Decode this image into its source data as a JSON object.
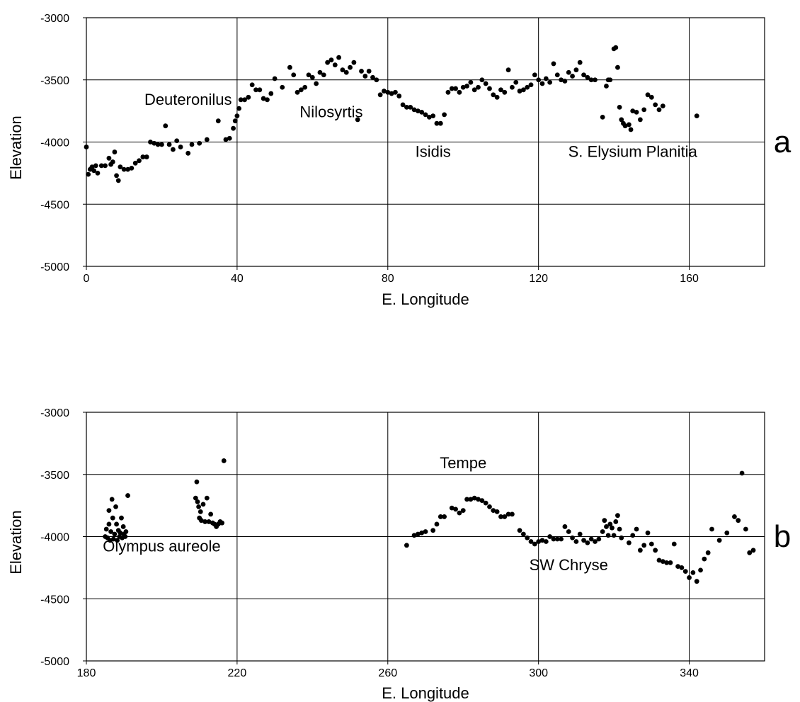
{
  "chart_data": [
    {
      "type": "scatter",
      "panel_label": "a",
      "xlabel": "E. Longitude",
      "ylabel": "Elevation",
      "xlim": [
        0,
        180
      ],
      "ylim": [
        -5000,
        -3000
      ],
      "xticks": [
        0,
        40,
        80,
        120,
        160
      ],
      "yticks": [
        -3000,
        -3500,
        -4000,
        -4500,
        -5000
      ],
      "grid": true,
      "annotations": [
        {
          "text": "Deuteronilus",
          "x": 27,
          "y": -3700
        },
        {
          "text": "Nilosyrtis",
          "x": 65,
          "y": -3800
        },
        {
          "text": "Isidis",
          "x": 92,
          "y": -4120
        },
        {
          "text": "S. Elysium Planitia",
          "x": 145,
          "y": -4120
        }
      ],
      "points": [
        [
          0,
          -4040
        ],
        [
          0.5,
          -4260
        ],
        [
          1,
          -4220
        ],
        [
          1.5,
          -4200
        ],
        [
          2,
          -4230
        ],
        [
          2.5,
          -4190
        ],
        [
          3,
          -4250
        ],
        [
          4,
          -4190
        ],
        [
          5,
          -4190
        ],
        [
          6,
          -4130
        ],
        [
          6.5,
          -4180
        ],
        [
          7,
          -4160
        ],
        [
          7.5,
          -4080
        ],
        [
          8,
          -4270
        ],
        [
          8.5,
          -4310
        ],
        [
          9,
          -4200
        ],
        [
          10,
          -4220
        ],
        [
          11,
          -4220
        ],
        [
          12,
          -4210
        ],
        [
          13,
          -4170
        ],
        [
          14,
          -4150
        ],
        [
          15,
          -4120
        ],
        [
          16,
          -4120
        ],
        [
          17,
          -4000
        ],
        [
          18,
          -4010
        ],
        [
          19,
          -4020
        ],
        [
          20,
          -4020
        ],
        [
          21,
          -3870
        ],
        [
          22,
          -4020
        ],
        [
          23,
          -4060
        ],
        [
          24,
          -3990
        ],
        [
          25,
          -4040
        ],
        [
          27,
          -4090
        ],
        [
          28,
          -4020
        ],
        [
          30,
          -4010
        ],
        [
          32,
          -3980
        ],
        [
          35,
          -3830
        ],
        [
          37,
          -3980
        ],
        [
          38,
          -3970
        ],
        [
          39,
          -3890
        ],
        [
          39.5,
          -3830
        ],
        [
          40,
          -3790
        ],
        [
          40.5,
          -3730
        ],
        [
          41,
          -3660
        ],
        [
          42,
          -3660
        ],
        [
          43,
          -3640
        ],
        [
          44,
          -3540
        ],
        [
          45,
          -3580
        ],
        [
          46,
          -3580
        ],
        [
          47,
          -3650
        ],
        [
          48,
          -3660
        ],
        [
          49,
          -3610
        ],
        [
          50,
          -3490
        ],
        [
          52,
          -3560
        ],
        [
          54,
          -3400
        ],
        [
          55,
          -3460
        ],
        [
          56,
          -3600
        ],
        [
          57,
          -3580
        ],
        [
          58,
          -3560
        ],
        [
          59,
          -3460
        ],
        [
          60,
          -3480
        ],
        [
          61,
          -3530
        ],
        [
          62,
          -3440
        ],
        [
          63,
          -3460
        ],
        [
          64,
          -3360
        ],
        [
          65,
          -3340
        ],
        [
          66,
          -3380
        ],
        [
          67,
          -3320
        ],
        [
          68,
          -3420
        ],
        [
          69,
          -3440
        ],
        [
          70,
          -3400
        ],
        [
          71,
          -3360
        ],
        [
          72,
          -3820
        ],
        [
          73,
          -3430
        ],
        [
          74,
          -3470
        ],
        [
          75,
          -3430
        ],
        [
          76,
          -3480
        ],
        [
          77,
          -3500
        ],
        [
          78,
          -3620
        ],
        [
          79,
          -3590
        ],
        [
          80,
          -3600
        ],
        [
          81,
          -3610
        ],
        [
          82,
          -3600
        ],
        [
          83,
          -3630
        ],
        [
          84,
          -3700
        ],
        [
          85,
          -3720
        ],
        [
          86,
          -3720
        ],
        [
          87,
          -3740
        ],
        [
          88,
          -3750
        ],
        [
          89,
          -3760
        ],
        [
          90,
          -3780
        ],
        [
          91,
          -3800
        ],
        [
          92,
          -3790
        ],
        [
          93,
          -3850
        ],
        [
          94,
          -3850
        ],
        [
          95,
          -3780
        ],
        [
          96,
          -3600
        ],
        [
          97,
          -3570
        ],
        [
          98,
          -3570
        ],
        [
          99,
          -3600
        ],
        [
          100,
          -3560
        ],
        [
          101,
          -3550
        ],
        [
          102,
          -3520
        ],
        [
          103,
          -3580
        ],
        [
          104,
          -3560
        ],
        [
          105,
          -3500
        ],
        [
          106,
          -3530
        ],
        [
          107,
          -3570
        ],
        [
          108,
          -3620
        ],
        [
          109,
          -3640
        ],
        [
          110,
          -3580
        ],
        [
          111,
          -3600
        ],
        [
          112,
          -3420
        ],
        [
          113,
          -3560
        ],
        [
          114,
          -3520
        ],
        [
          115,
          -3590
        ],
        [
          116,
          -3580
        ],
        [
          117,
          -3560
        ],
        [
          118,
          -3540
        ],
        [
          119,
          -3460
        ],
        [
          120,
          -3500
        ],
        [
          121,
          -3530
        ],
        [
          122,
          -3490
        ],
        [
          123,
          -3520
        ],
        [
          124,
          -3370
        ],
        [
          125,
          -3460
        ],
        [
          126,
          -3500
        ],
        [
          127,
          -3510
        ],
        [
          128,
          -3440
        ],
        [
          129,
          -3470
        ],
        [
          130,
          -3420
        ],
        [
          131,
          -3360
        ],
        [
          132,
          -3460
        ],
        [
          133,
          -3480
        ],
        [
          134,
          -3500
        ],
        [
          135,
          -3500
        ],
        [
          137,
          -3800
        ],
        [
          138,
          -3550
        ],
        [
          138.5,
          -3500
        ],
        [
          139,
          -3500
        ],
        [
          140,
          -3250
        ],
        [
          140.5,
          -3240
        ],
        [
          141,
          -3400
        ],
        [
          141.5,
          -3720
        ],
        [
          142,
          -3820
        ],
        [
          142.5,
          -3850
        ],
        [
          143,
          -3870
        ],
        [
          144,
          -3860
        ],
        [
          144.5,
          -3900
        ],
        [
          145,
          -3750
        ],
        [
          146,
          -3760
        ],
        [
          147,
          -3820
        ],
        [
          148,
          -3740
        ],
        [
          149,
          -3620
        ],
        [
          150,
          -3640
        ],
        [
          151,
          -3700
        ],
        [
          152,
          -3740
        ],
        [
          153,
          -3710
        ],
        [
          162,
          -3790
        ]
      ]
    },
    {
      "type": "scatter",
      "panel_label": "b",
      "xlabel": "E. Longitude",
      "ylabel": "Elevation",
      "xlim": [
        180,
        360
      ],
      "ylim": [
        -5000,
        -3000
      ],
      "xticks": [
        180,
        220,
        260,
        300,
        340
      ],
      "yticks": [
        -3000,
        -3500,
        -4000,
        -4500,
        -5000
      ],
      "grid": true,
      "annotations": [
        {
          "text": "Olympus aureole",
          "x": 200,
          "y": -4120
        },
        {
          "text": "Tempe",
          "x": 280,
          "y": -3450
        },
        {
          "text": "SW Chryse",
          "x": 308,
          "y": -4270
        }
      ],
      "points": [
        [
          185,
          -4000
        ],
        [
          185.3,
          -3940
        ],
        [
          185.6,
          -4010
        ],
        [
          186,
          -3900
        ],
        [
          186,
          -3790
        ],
        [
          186.3,
          -4030
        ],
        [
          186.5,
          -3960
        ],
        [
          186.8,
          -3700
        ],
        [
          187,
          -3850
        ],
        [
          187.2,
          -4020
        ],
        [
          187.5,
          -3980
        ],
        [
          187.8,
          -3760
        ],
        [
          188,
          -3900
        ],
        [
          188.2,
          -4030
        ],
        [
          188.5,
          -3950
        ],
        [
          188.8,
          -4000
        ],
        [
          189,
          -3970
        ],
        [
          189.3,
          -3850
        ],
        [
          189.5,
          -4010
        ],
        [
          189.8,
          -3920
        ],
        [
          190,
          -3980
        ],
        [
          190.3,
          -4000
        ],
        [
          190.5,
          -3960
        ],
        [
          191,
          -3670
        ],
        [
          209,
          -3690
        ],
        [
          209.3,
          -3560
        ],
        [
          209.5,
          -3720
        ],
        [
          209.8,
          -3760
        ],
        [
          210,
          -3850
        ],
        [
          210.3,
          -3800
        ],
        [
          210.5,
          -3870
        ],
        [
          211,
          -3740
        ],
        [
          211.5,
          -3880
        ],
        [
          212,
          -3690
        ],
        [
          212.5,
          -3880
        ],
        [
          213,
          -3820
        ],
        [
          213.5,
          -3890
        ],
        [
          214,
          -3900
        ],
        [
          214.5,
          -3920
        ],
        [
          215,
          -3900
        ],
        [
          215.5,
          -3880
        ],
        [
          216,
          -3890
        ],
        [
          216.5,
          -3390
        ],
        [
          265,
          -4070
        ],
        [
          267,
          -3990
        ],
        [
          268,
          -3980
        ],
        [
          269,
          -3970
        ],
        [
          270,
          -3960
        ],
        [
          272,
          -3950
        ],
        [
          273,
          -3900
        ],
        [
          274,
          -3840
        ],
        [
          275,
          -3840
        ],
        [
          277,
          -3770
        ],
        [
          278,
          -3780
        ],
        [
          279,
          -3810
        ],
        [
          280,
          -3790
        ],
        [
          281,
          -3700
        ],
        [
          282,
          -3700
        ],
        [
          283,
          -3690
        ],
        [
          284,
          -3700
        ],
        [
          285,
          -3710
        ],
        [
          286,
          -3730
        ],
        [
          287,
          -3760
        ],
        [
          288,
          -3790
        ],
        [
          289,
          -3800
        ],
        [
          290,
          -3840
        ],
        [
          291,
          -3840
        ],
        [
          292,
          -3820
        ],
        [
          293,
          -3820
        ],
        [
          295,
          -3950
        ],
        [
          296,
          -3980
        ],
        [
          297,
          -4010
        ],
        [
          298,
          -4040
        ],
        [
          299,
          -4060
        ],
        [
          300,
          -4040
        ],
        [
          301,
          -4030
        ],
        [
          302,
          -4040
        ],
        [
          303,
          -4000
        ],
        [
          304,
          -4020
        ],
        [
          305,
          -4020
        ],
        [
          306,
          -4020
        ],
        [
          307,
          -3920
        ],
        [
          308,
          -3960
        ],
        [
          309,
          -4010
        ],
        [
          310,
          -4040
        ],
        [
          311,
          -3980
        ],
        [
          312,
          -4030
        ],
        [
          313,
          -4050
        ],
        [
          314,
          -4020
        ],
        [
          315,
          -4040
        ],
        [
          316,
          -4020
        ],
        [
          317,
          -3960
        ],
        [
          317.5,
          -3870
        ],
        [
          318,
          -3920
        ],
        [
          318.5,
          -3990
        ],
        [
          319,
          -3900
        ],
        [
          319.5,
          -3930
        ],
        [
          320,
          -3990
        ],
        [
          320.5,
          -3880
        ],
        [
          321,
          -3830
        ],
        [
          321.5,
          -3940
        ],
        [
          322,
          -4010
        ],
        [
          324,
          -4050
        ],
        [
          325,
          -3990
        ],
        [
          326,
          -3940
        ],
        [
          327,
          -4110
        ],
        [
          328,
          -4070
        ],
        [
          329,
          -3970
        ],
        [
          330,
          -4060
        ],
        [
          331,
          -4110
        ],
        [
          332,
          -4190
        ],
        [
          333,
          -4200
        ],
        [
          334,
          -4210
        ],
        [
          335,
          -4210
        ],
        [
          336,
          -4060
        ],
        [
          337,
          -4240
        ],
        [
          338,
          -4250
        ],
        [
          339,
          -4280
        ],
        [
          340,
          -4330
        ],
        [
          341,
          -4290
        ],
        [
          342,
          -4360
        ],
        [
          343,
          -4270
        ],
        [
          344,
          -4180
        ],
        [
          345,
          -4130
        ],
        [
          346,
          -3940
        ],
        [
          348,
          -4030
        ],
        [
          350,
          -3970
        ],
        [
          352,
          -3840
        ],
        [
          353,
          -3870
        ],
        [
          354,
          -3490
        ],
        [
          355,
          -3940
        ],
        [
          356,
          -4130
        ],
        [
          357,
          -4110
        ]
      ]
    }
  ]
}
